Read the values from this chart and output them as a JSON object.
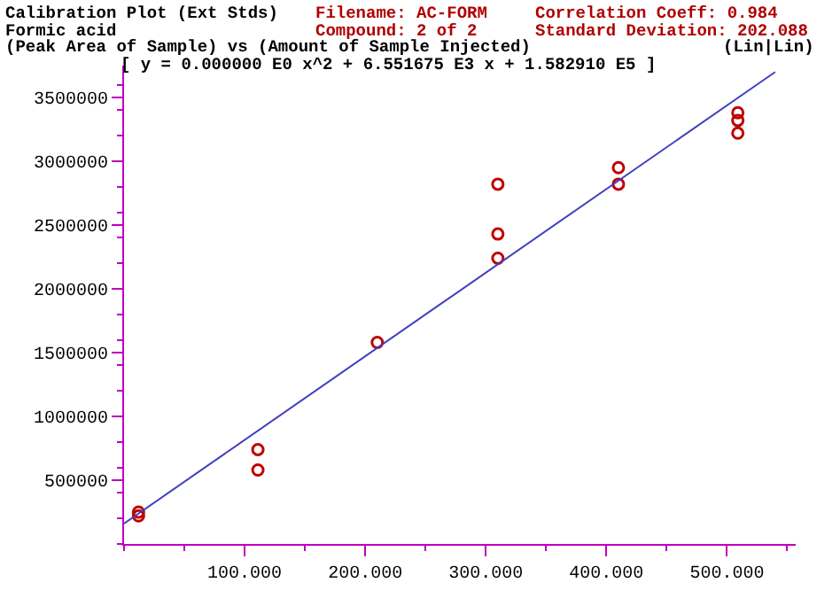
{
  "chart_data": {
    "type": "scatter",
    "title": "Calibration Plot (Ext Stds)",
    "subtitle": "Formic acid",
    "annotations": [
      "Filename: AC-FORM",
      "Compound: 2 of 2",
      "Correlation Coeff: 0.984",
      "Standard Deviation: 202.088",
      "(Peak Area of Sample) vs (Amount of Sample Injected)",
      "(Lin|Lin)",
      "[ y = 0.000000 E0 x^2 + 6.551675 E3 x + 1.582910 E5 ]"
    ],
    "series": [
      {
        "color": "#c00000",
        "marker": "circle",
        "x": [
          12,
          12,
          111,
          111,
          210,
          310,
          310,
          310,
          410,
          410,
          509,
          509,
          509
        ],
        "values": [
          220000,
          250000,
          580000,
          740000,
          1580000,
          2240000,
          2430000,
          2820000,
          2820000,
          2950000,
          3220000,
          3320000,
          3380000
        ]
      },
      {
        "type": "line",
        "color": "#4040c0",
        "marker": "none",
        "line_style": "solid",
        "x": [
          0,
          540
        ],
        "values": [
          160000,
          3700000
        ]
      }
    ],
    "xlim": [
      0,
      557
    ],
    "ylim": [
      0,
      3750000
    ],
    "xticks": [
      {
        "value": 100,
        "label": "100.000"
      },
      {
        "value": 200,
        "label": "200.000"
      },
      {
        "value": 300,
        "label": "300.000"
      },
      {
        "value": 400,
        "label": "400.000"
      },
      {
        "value": 500,
        "label": "500.000"
      }
    ],
    "yticks": [
      500000,
      1000000,
      1500000,
      2000000,
      2500000,
      3000000,
      3500000
    ]
  }
}
